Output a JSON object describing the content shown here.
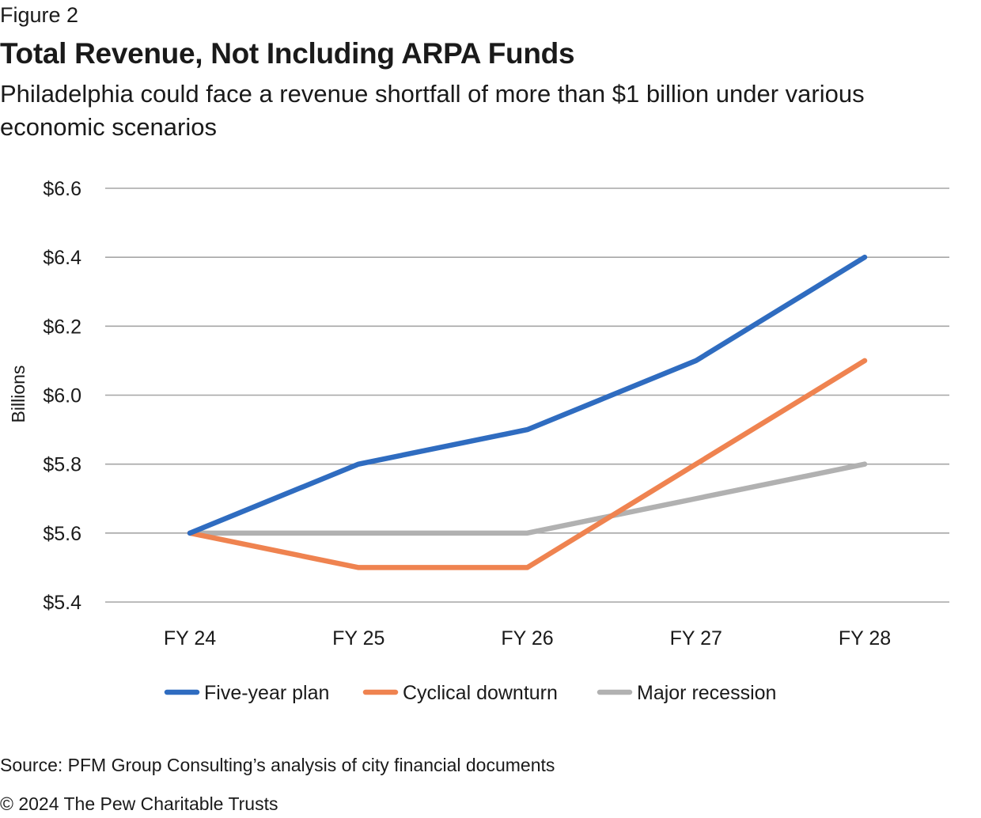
{
  "figure_label": "Figure 2",
  "title": "Total Revenue, Not Including ARPA Funds",
  "subtitle": "Philadelphia could face a revenue shortfall of more than $1 billion under various economic scenarios",
  "source": "Source: PFM Group Consulting’s analysis of city financial documents",
  "copyright": "© 2024 The Pew Charitable Trusts",
  "chart_data": {
    "type": "line",
    "ylabel": "Billions",
    "xlabel": "",
    "ylim": [
      5.4,
      6.6
    ],
    "y_ticks": [
      5.4,
      5.6,
      5.8,
      6.0,
      6.2,
      6.4,
      6.6
    ],
    "y_tick_labels": [
      "$5.4",
      "$5.6",
      "$5.8",
      "$6.0",
      "$6.2",
      "$6.4",
      "$6.6"
    ],
    "categories": [
      "FY 24",
      "FY 25",
      "FY 26",
      "FY 27",
      "FY 28"
    ],
    "grid": "horizontal",
    "legend_position": "bottom",
    "series": [
      {
        "name": "Five-year plan",
        "color": "#2f6cc0",
        "values": [
          5.6,
          5.8,
          5.9,
          6.1,
          6.4
        ]
      },
      {
        "name": "Cyclical downturn",
        "color": "#ef8350",
        "values": [
          5.6,
          5.5,
          5.5,
          5.8,
          6.1
        ]
      },
      {
        "name": "Major recession",
        "color": "#b1b1b1",
        "values": [
          5.6,
          5.6,
          5.6,
          5.7,
          5.8
        ]
      }
    ]
  }
}
